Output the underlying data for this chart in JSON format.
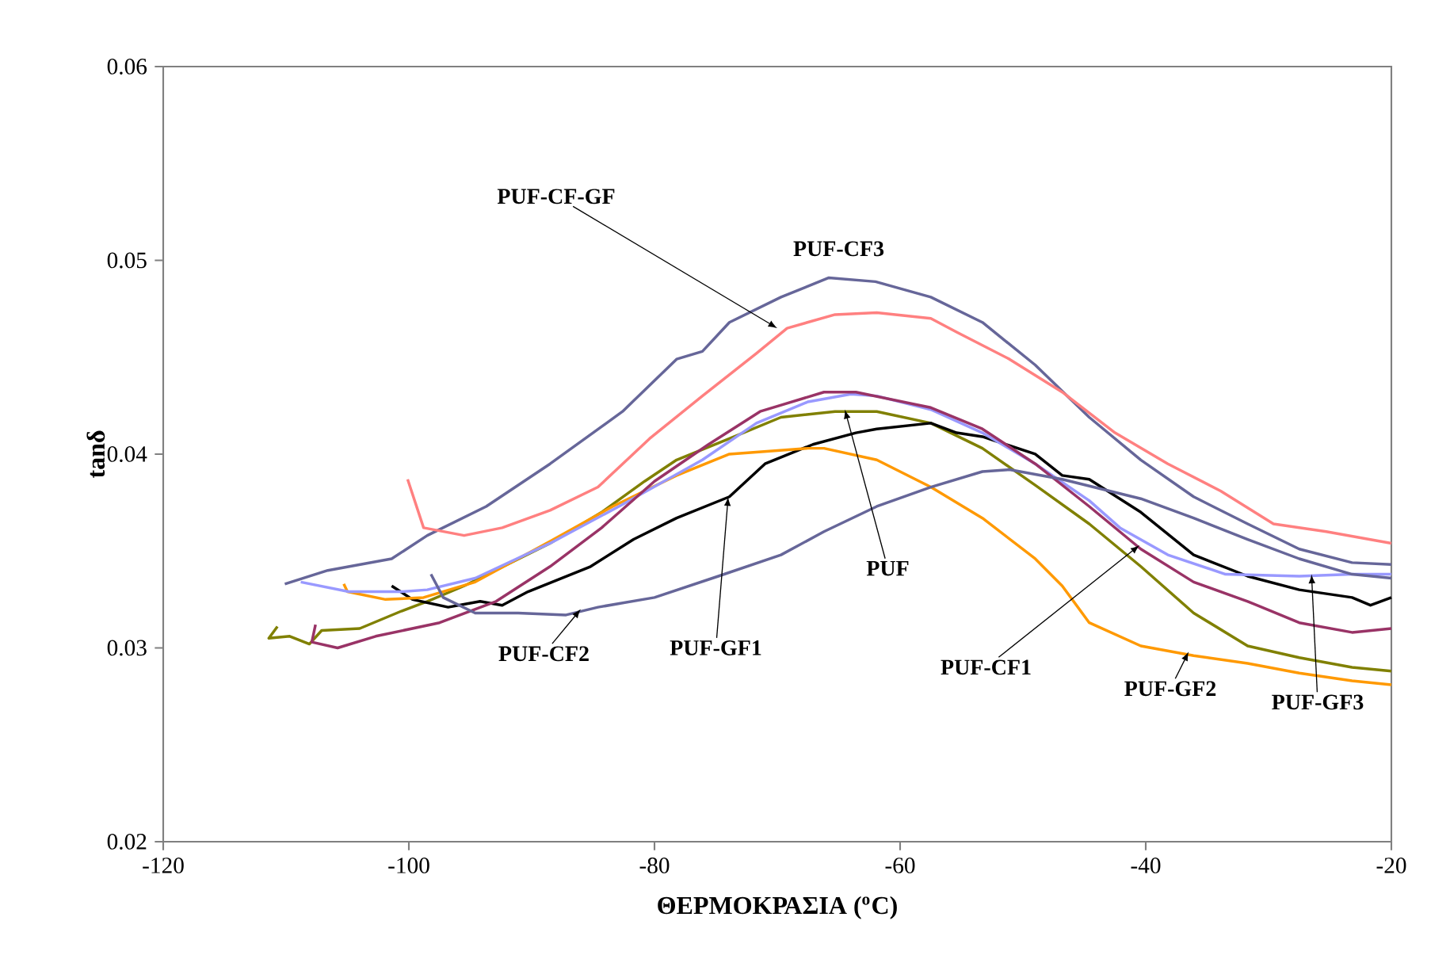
{
  "chart_data": {
    "type": "line",
    "xlabel": "ΘΕΡΜΟΚΡΑΣΙΑ ($^{o}$C)",
    "ylabel": "tanδ",
    "xlim": [
      -120,
      -20
    ],
    "xticks": [
      -120,
      -100,
      -80,
      -60,
      -40,
      -20
    ],
    "ylim": [
      0.02,
      0.06
    ],
    "yticks": [
      0.02,
      0.03,
      0.04,
      0.05,
      0.06
    ],
    "grid": false,
    "marker": "none",
    "line_style": "solid",
    "annotations": [
      {
        "text": "PUF",
        "x": -64.5,
        "y": 0.0423
      },
      {
        "text": "PUF-GF1",
        "x": -74,
        "y": 0.0378
      },
      {
        "text": "PUF-GF2",
        "x": -36.5,
        "y": 0.0298
      },
      {
        "text": "PUF-GF3",
        "x": -26.5,
        "y": 0.0338
      },
      {
        "text": "PUF-CF1",
        "x": -40.5,
        "y": 0.0353
      },
      {
        "text": "PUF-CF2",
        "x": -86,
        "y": 0.032
      },
      {
        "text": "PUF-CF3",
        "x": -65.8,
        "y": 0.0491
      },
      {
        "text": "PUF-CF-GF",
        "x": -70,
        "y": 0.0465
      }
    ],
    "series": [
      {
        "color": "#808000",
        "x": [
          -110.7,
          -111.4,
          -109.7,
          -108.1,
          -107.1,
          -104.0,
          -100.6,
          -98.5,
          -95.5,
          -88.5,
          -84.3,
          -80.8,
          -78.2,
          -73.9,
          -69.7,
          -65.3,
          -61.9,
          -57.5,
          -53.3,
          -49.0,
          -44.6,
          -40.4,
          -36.1,
          -31.7,
          -27.5,
          -23.2,
          -20
        ],
        "values": [
          0.0311,
          0.0305,
          0.0306,
          0.0302,
          0.0309,
          0.031,
          0.0319,
          0.0324,
          0.0332,
          0.0354,
          0.037,
          0.0386,
          0.0397,
          0.0408,
          0.0419,
          0.0422,
          0.0422,
          0.0416,
          0.0403,
          0.0384,
          0.0364,
          0.0342,
          0.0318,
          0.0301,
          0.0295,
          0.029,
          0.0288
        ]
      },
      {
        "color": "#000000",
        "x": [
          -101.4,
          -99.7,
          -96.8,
          -94.2,
          -92.4,
          -90.3,
          -85.2,
          -81.7,
          -78.2,
          -73.9,
          -71.0,
          -67.1,
          -63.6,
          -61.9,
          -57.5,
          -55.4,
          -53.3,
          -49.0,
          -46.8,
          -44.6,
          -40.4,
          -36.1,
          -31.7,
          -27.5,
          -23.2,
          -21.7,
          -20
        ],
        "values": [
          0.0332,
          0.0325,
          0.0321,
          0.0324,
          0.0322,
          0.0329,
          0.0342,
          0.0356,
          0.0367,
          0.0378,
          0.0395,
          0.0405,
          0.0411,
          0.0413,
          0.0416,
          0.0411,
          0.0409,
          0.04,
          0.0389,
          0.0387,
          0.037,
          0.0348,
          0.0337,
          0.033,
          0.0326,
          0.0322,
          0.0326
        ]
      },
      {
        "color": "#ff9900",
        "x": [
          -105.3,
          -105.0,
          -101.9,
          -98.8,
          -94.6,
          -88.5,
          -83.4,
          -78.2,
          -73.9,
          -67.5,
          -66.2,
          -61.9,
          -57.5,
          -53.3,
          -49.0,
          -46.8,
          -44.6,
          -40.4,
          -36.1,
          -31.7,
          -27.5,
          -23.2,
          -20
        ],
        "values": [
          0.0333,
          0.0329,
          0.0325,
          0.0326,
          0.0334,
          0.0355,
          0.0373,
          0.0389,
          0.04,
          0.0403,
          0.0403,
          0.0397,
          0.0383,
          0.0367,
          0.0346,
          0.0332,
          0.0313,
          0.0301,
          0.0296,
          0.0292,
          0.0287,
          0.0283,
          0.0281
        ]
      },
      {
        "color": "#9999ff",
        "x": [
          -108.8,
          -104.9,
          -100.6,
          -98.5,
          -94.6,
          -88.5,
          -82.6,
          -76.1,
          -71.7,
          -67.5,
          -64.0,
          -61.9,
          -57.5,
          -53.3,
          -49.0,
          -44.6,
          -42.1,
          -38.2,
          -33.5,
          -27.5,
          -23.2,
          -20
        ],
        "values": [
          0.0334,
          0.0329,
          0.0329,
          0.033,
          0.0336,
          0.0354,
          0.0374,
          0.0397,
          0.0416,
          0.0427,
          0.0431,
          0.043,
          0.0423,
          0.0411,
          0.0395,
          0.0376,
          0.0362,
          0.0348,
          0.0338,
          0.0337,
          0.0338,
          0.0338
        ]
      },
      {
        "color": "#993366",
        "x": [
          -107.6,
          -107.9,
          -105.8,
          -102.7,
          -97.5,
          -92.9,
          -88.5,
          -84.3,
          -80.0,
          -75.6,
          -71.4,
          -66.2,
          -63.6,
          -57.5,
          -53.3,
          -49.0,
          -44.6,
          -40.4,
          -36.1,
          -31.7,
          -27.5,
          -23.2,
          -20
        ],
        "values": [
          0.0312,
          0.0303,
          0.03,
          0.0306,
          0.0313,
          0.0324,
          0.0342,
          0.0362,
          0.0386,
          0.0405,
          0.0422,
          0.0432,
          0.0432,
          0.0424,
          0.0413,
          0.0395,
          0.0373,
          0.0351,
          0.0334,
          0.0324,
          0.0313,
          0.0308,
          0.031
        ]
      },
      {
        "color": "#666699",
        "x": [
          -98.2,
          -97.2,
          -94.6,
          -91.1,
          -87.2,
          -84.6,
          -80.0,
          -74.8,
          -69.7,
          -66.2,
          -61.9,
          -57.5,
          -53.3,
          -51.1,
          -46.8,
          -40.4,
          -36.1,
          -31.7,
          -27.5,
          -23.2,
          -20
        ],
        "values": [
          0.0338,
          0.0326,
          0.0318,
          0.0318,
          0.0317,
          0.0321,
          0.0326,
          0.0337,
          0.0348,
          0.036,
          0.0373,
          0.0383,
          0.0391,
          0.0392,
          0.0387,
          0.0377,
          0.0367,
          0.0356,
          0.0346,
          0.0338,
          0.0336
        ]
      },
      {
        "color": "#666699",
        "x": [
          -110.1,
          -106.6,
          -101.4,
          -98.5,
          -93.7,
          -88.5,
          -82.6,
          -78.2,
          -76.1,
          -73.9,
          -69.7,
          -65.8,
          -62.0,
          -57.5,
          -53.3,
          -49.0,
          -44.6,
          -40.4,
          -36.1,
          -31.7,
          -27.5,
          -23.2,
          -20
        ],
        "values": [
          0.0333,
          0.034,
          0.0346,
          0.0358,
          0.0373,
          0.0395,
          0.0422,
          0.0449,
          0.0453,
          0.0468,
          0.0481,
          0.0491,
          0.0489,
          0.0481,
          0.0468,
          0.0446,
          0.0419,
          0.0397,
          0.0378,
          0.0364,
          0.0351,
          0.0344,
          0.0343
        ]
      },
      {
        "color": "#ff8080",
        "x": [
          -100.1,
          -98.8,
          -95.5,
          -92.4,
          -88.5,
          -84.6,
          -80.4,
          -76.1,
          -71.7,
          -69.2,
          -65.3,
          -61.9,
          -57.5,
          -55.4,
          -51.1,
          -46.8,
          -42.5,
          -38.2,
          -33.9,
          -29.6,
          -25.3,
          -20
        ],
        "values": [
          0.0387,
          0.0362,
          0.0358,
          0.0362,
          0.0371,
          0.0383,
          0.0408,
          0.043,
          0.0452,
          0.0465,
          0.0472,
          0.0473,
          0.047,
          0.0463,
          0.0449,
          0.0432,
          0.0411,
          0.0395,
          0.0381,
          0.0364,
          0.036,
          0.0354
        ]
      }
    ]
  }
}
